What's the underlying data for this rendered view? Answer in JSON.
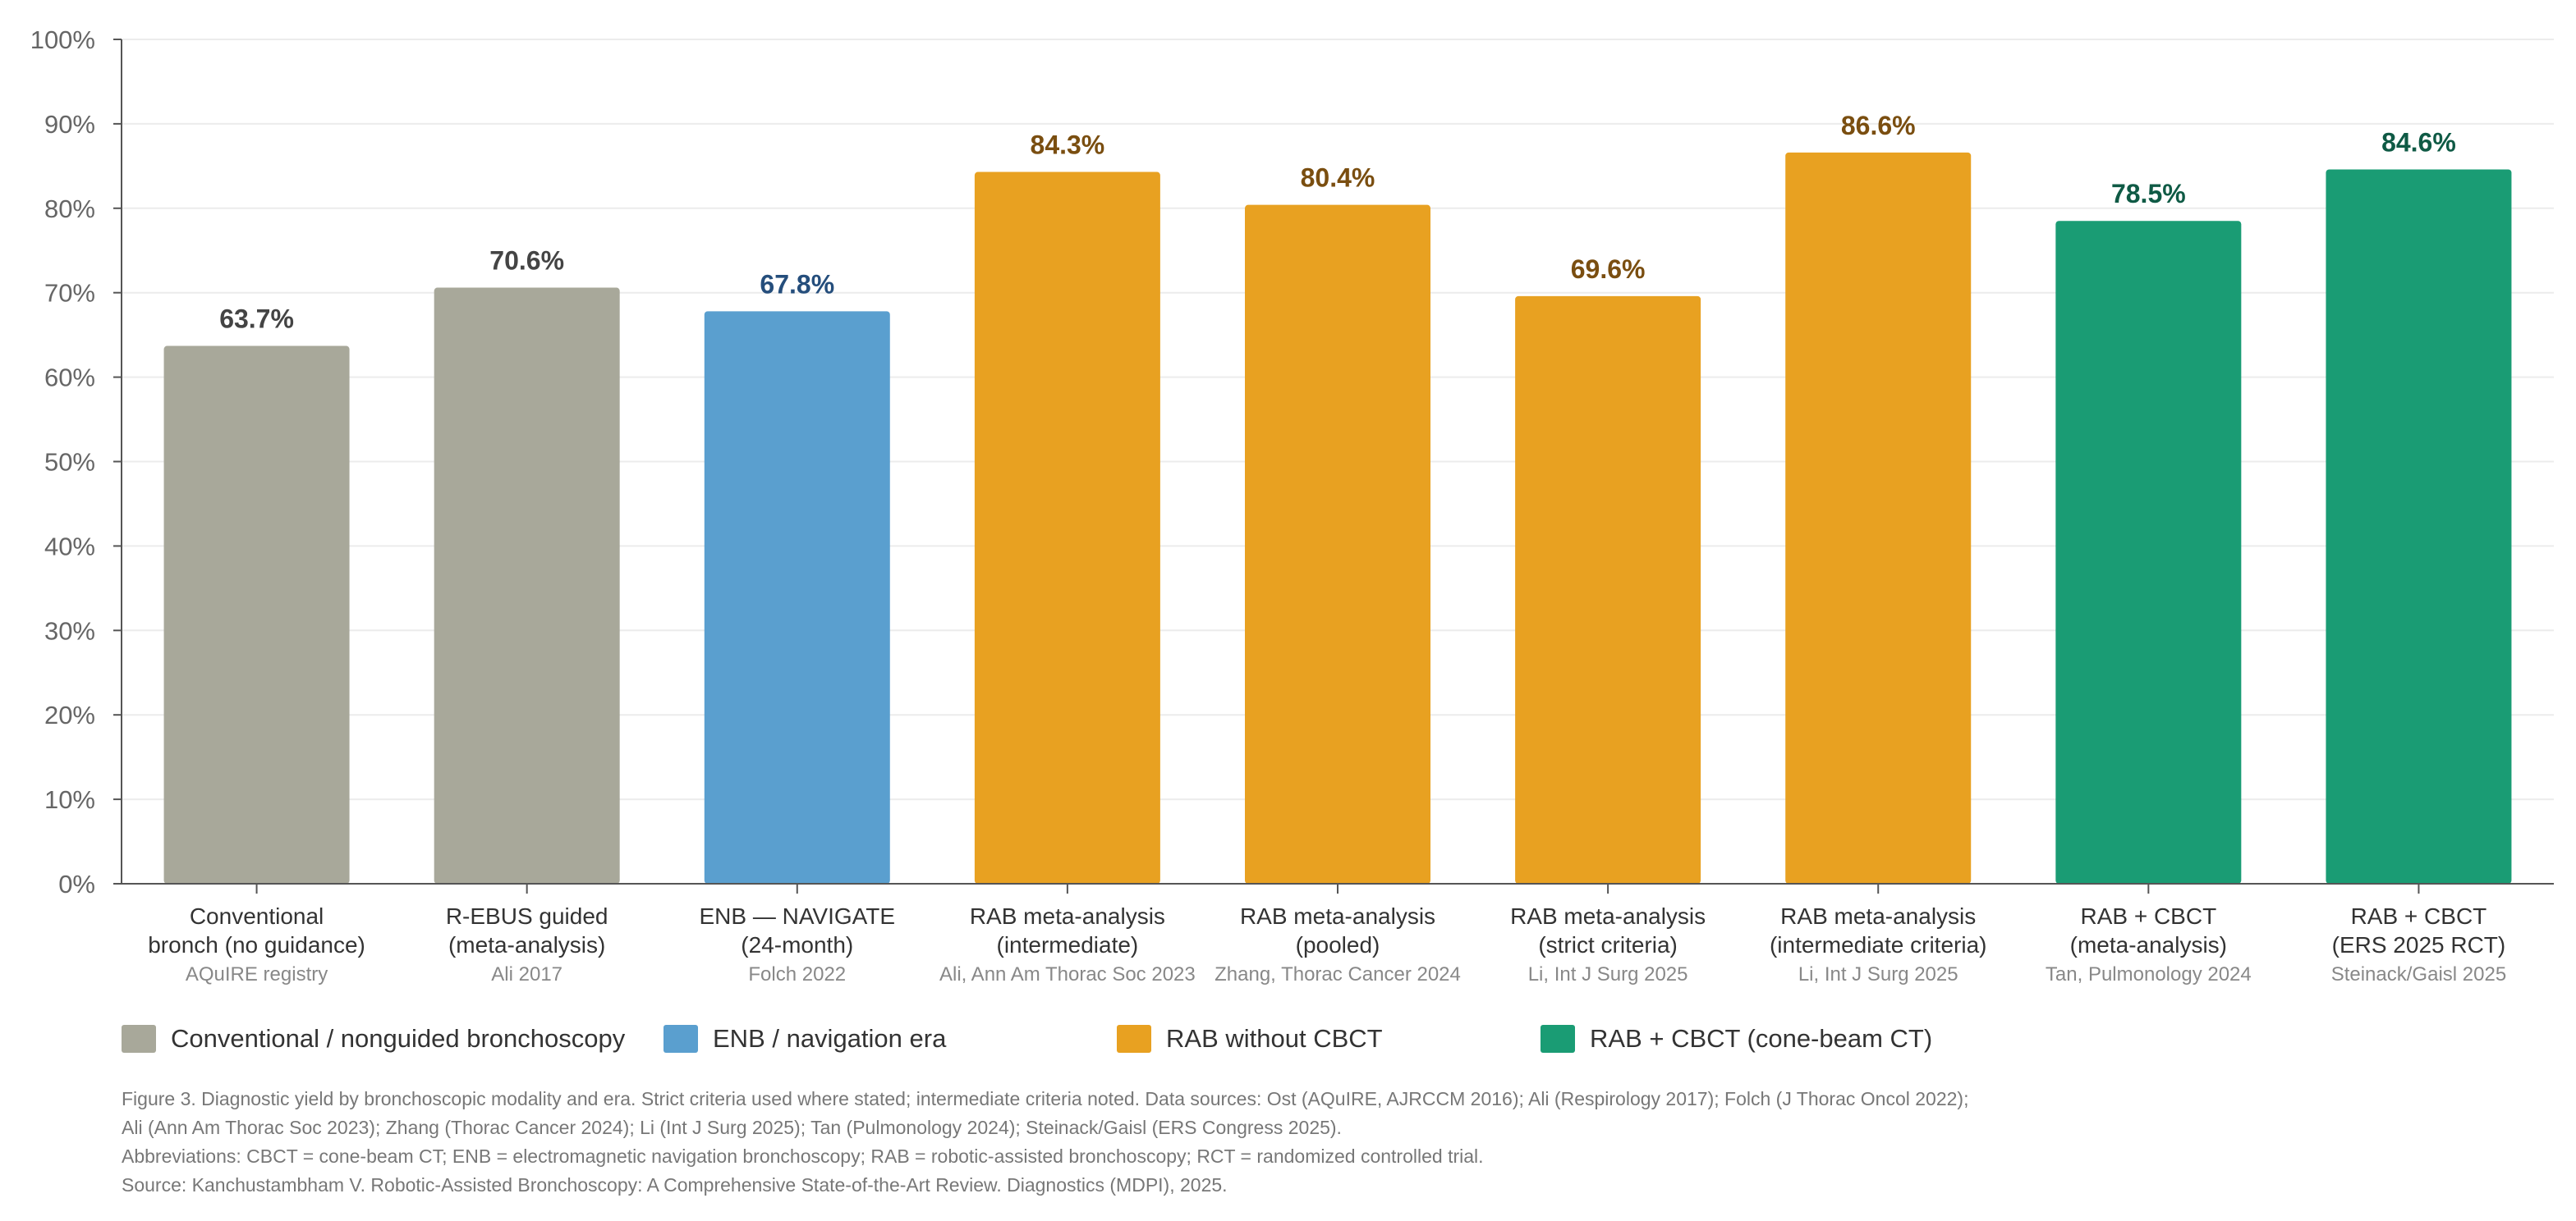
{
  "chart_data": {
    "type": "bar",
    "categories": [
      {
        "line1": "Conventional",
        "line2": "bronch (no guidance)",
        "source": "AQuIRE registry"
      },
      {
        "line1": "R-EBUS guided",
        "line2": "(meta-analysis)",
        "source": "Ali 2017"
      },
      {
        "line1": "ENB — NAVIGATE",
        "line2": "(24-month)",
        "source": "Folch 2022"
      },
      {
        "line1": "RAB meta-analysis",
        "line2": "(intermediate)",
        "source": "Ali, Ann Am Thorac Soc 2023"
      },
      {
        "line1": "RAB meta-analysis",
        "line2": "(pooled)",
        "source": "Zhang, Thorac Cancer 2024"
      },
      {
        "line1": "RAB meta-analysis",
        "line2": "(strict criteria)",
        "source": "Li, Int J Surg 2025"
      },
      {
        "line1": "RAB meta-analysis",
        "line2": "(intermediate criteria)",
        "source": "Li, Int J Surg 2025"
      },
      {
        "line1": "RAB + CBCT",
        "line2": "(meta-analysis)",
        "source": "Tan, Pulmonology 2024"
      },
      {
        "line1": "RAB + CBCT",
        "line2": "(ERS 2025 RCT)",
        "source": "Steinack/Gaisl 2025"
      }
    ],
    "values": [
      63.7,
      70.6,
      67.8,
      84.3,
      80.4,
      69.6,
      86.6,
      78.5,
      84.6
    ],
    "data_labels": [
      "63.7%",
      "70.6%",
      "67.8%",
      "84.3%",
      "80.4%",
      "69.6%",
      "86.6%",
      "78.5%",
      "84.6%"
    ],
    "groups": [
      0,
      0,
      1,
      2,
      2,
      2,
      2,
      3,
      3
    ],
    "y_ticks": [
      "0%",
      "10%",
      "20%",
      "30%",
      "40%",
      "50%",
      "60%",
      "70%",
      "80%",
      "90%",
      "100%"
    ],
    "ylim": [
      0,
      100
    ],
    "grid": true,
    "legend_placement": "bottom",
    "legend": [
      {
        "label": "Conventional / nonguided bronchoscopy",
        "color": "#a8a89a",
        "label_color": "#444444"
      },
      {
        "label": "ENB / navigation era",
        "color": "#5a9fcf",
        "label_color": "#254e7c"
      },
      {
        "label": "RAB without CBCT",
        "color": "#e8a121",
        "label_color": "#7a4e10"
      },
      {
        "label": "RAB + CBCT (cone-beam CT)",
        "color": "#1a9c74",
        "label_color": "#0f5a45"
      }
    ]
  },
  "caption": {
    "line1": "Figure 3. Diagnostic yield by bronchoscopic modality and era. Strict criteria used where stated; intermediate criteria noted. Data sources: Ost (AQuIRE, AJRCCM 2016); Ali (Respirology 2017); Folch (J Thorac Oncol 2022);",
    "line2": "Ali (Ann Am Thorac Soc 2023); Zhang (Thorac Cancer 2024); Li (Int J Surg 2025); Tan (Pulmonology 2024); Steinack/Gaisl (ERS Congress 2025).",
    "line3": "Abbreviations: CBCT = cone-beam CT; ENB = electromagnetic navigation bronchoscopy; RAB = robotic-assisted bronchoscopy; RCT = randomized controlled trial.",
    "line4": "Source: Kanchustambham V. Robotic-Assisted Bronchoscopy: A Comprehensive State-of-the-Art Review. Diagnostics (MDPI), 2025."
  }
}
